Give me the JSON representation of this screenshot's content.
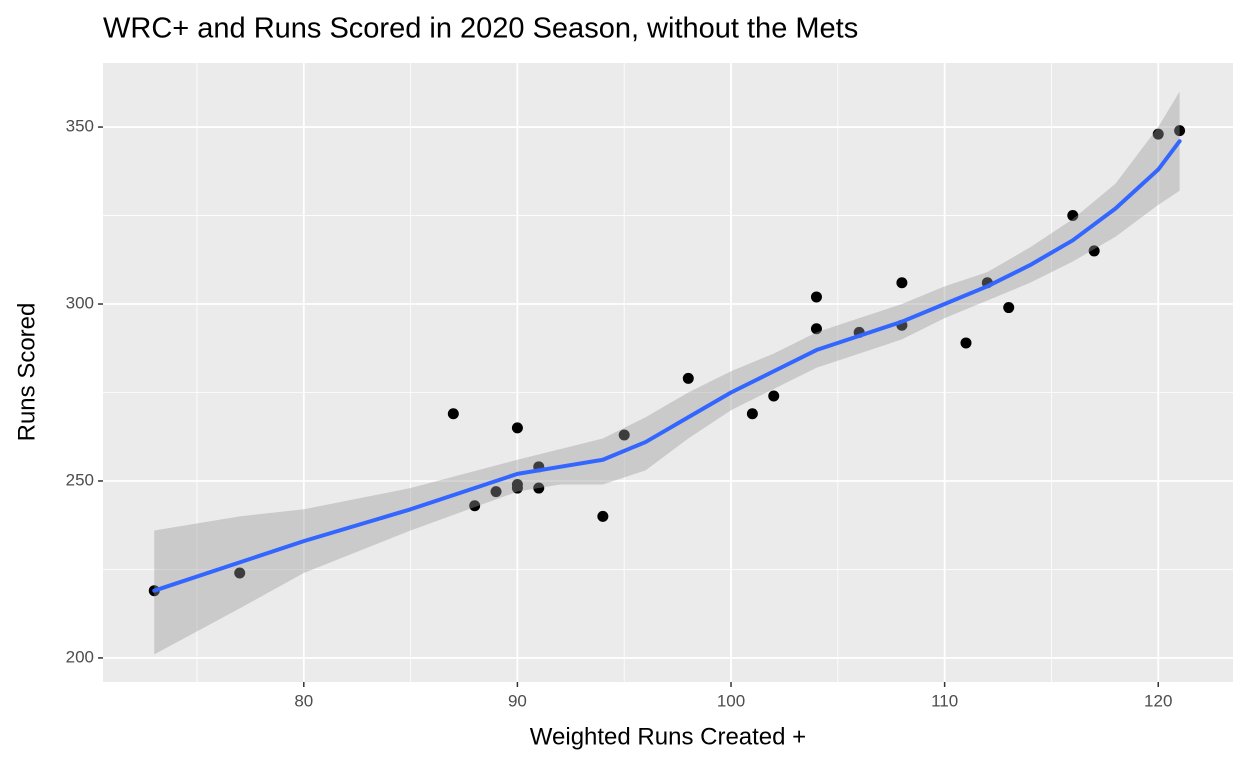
{
  "chart_data": {
    "type": "scatter",
    "title": "WRC+ and Runs Scored in 2020 Season, without the Mets",
    "x_label": "Weighted Runs Created +",
    "y_label": "Runs Scored",
    "xlim": [
      70.6,
      123.5
    ],
    "ylim": [
      193.2,
      368.1
    ],
    "xticks": [
      80,
      90,
      100,
      110,
      120
    ],
    "yticks": [
      200,
      250,
      300,
      350
    ],
    "x_minor_ticks": [
      75,
      85,
      95,
      105,
      115
    ],
    "y_minor_ticks": [
      225,
      275,
      325
    ],
    "grid": true,
    "points": {
      "color": "#000000",
      "x": [
        73,
        77,
        87,
        88,
        89,
        90,
        90,
        90,
        91,
        91,
        94,
        95,
        98,
        101,
        102,
        104,
        104,
        106,
        108,
        108,
        111,
        112,
        113,
        116,
        117,
        120,
        121
      ],
      "y": [
        219,
        224,
        269,
        243,
        247,
        265,
        249,
        248,
        254,
        248,
        240,
        263,
        279,
        269,
        274,
        302,
        293,
        292,
        306,
        294,
        289,
        306,
        299,
        325,
        315,
        348,
        349
      ]
    },
    "smooth": {
      "color": "#3366ff",
      "band_color": "#999999",
      "x": [
        73,
        77,
        80,
        85,
        90,
        92,
        94,
        96,
        98,
        100,
        102,
        104,
        106,
        108,
        110,
        112,
        114,
        116,
        118,
        120,
        121
      ],
      "y": [
        219,
        227,
        233,
        242,
        252,
        254,
        256,
        261,
        268,
        275,
        281,
        287,
        291,
        295,
        300,
        305,
        311,
        318,
        327,
        338,
        346
      ],
      "lower": [
        201,
        214,
        224,
        236,
        247,
        249,
        249,
        253,
        262,
        270,
        276,
        282,
        286,
        290,
        296,
        301,
        306,
        312,
        319,
        328,
        332
      ],
      "upper": [
        236,
        240,
        242,
        248,
        256,
        259,
        262,
        268,
        275,
        281,
        286,
        292,
        296,
        300,
        305,
        309,
        316,
        324,
        334,
        350,
        360
      ]
    }
  }
}
